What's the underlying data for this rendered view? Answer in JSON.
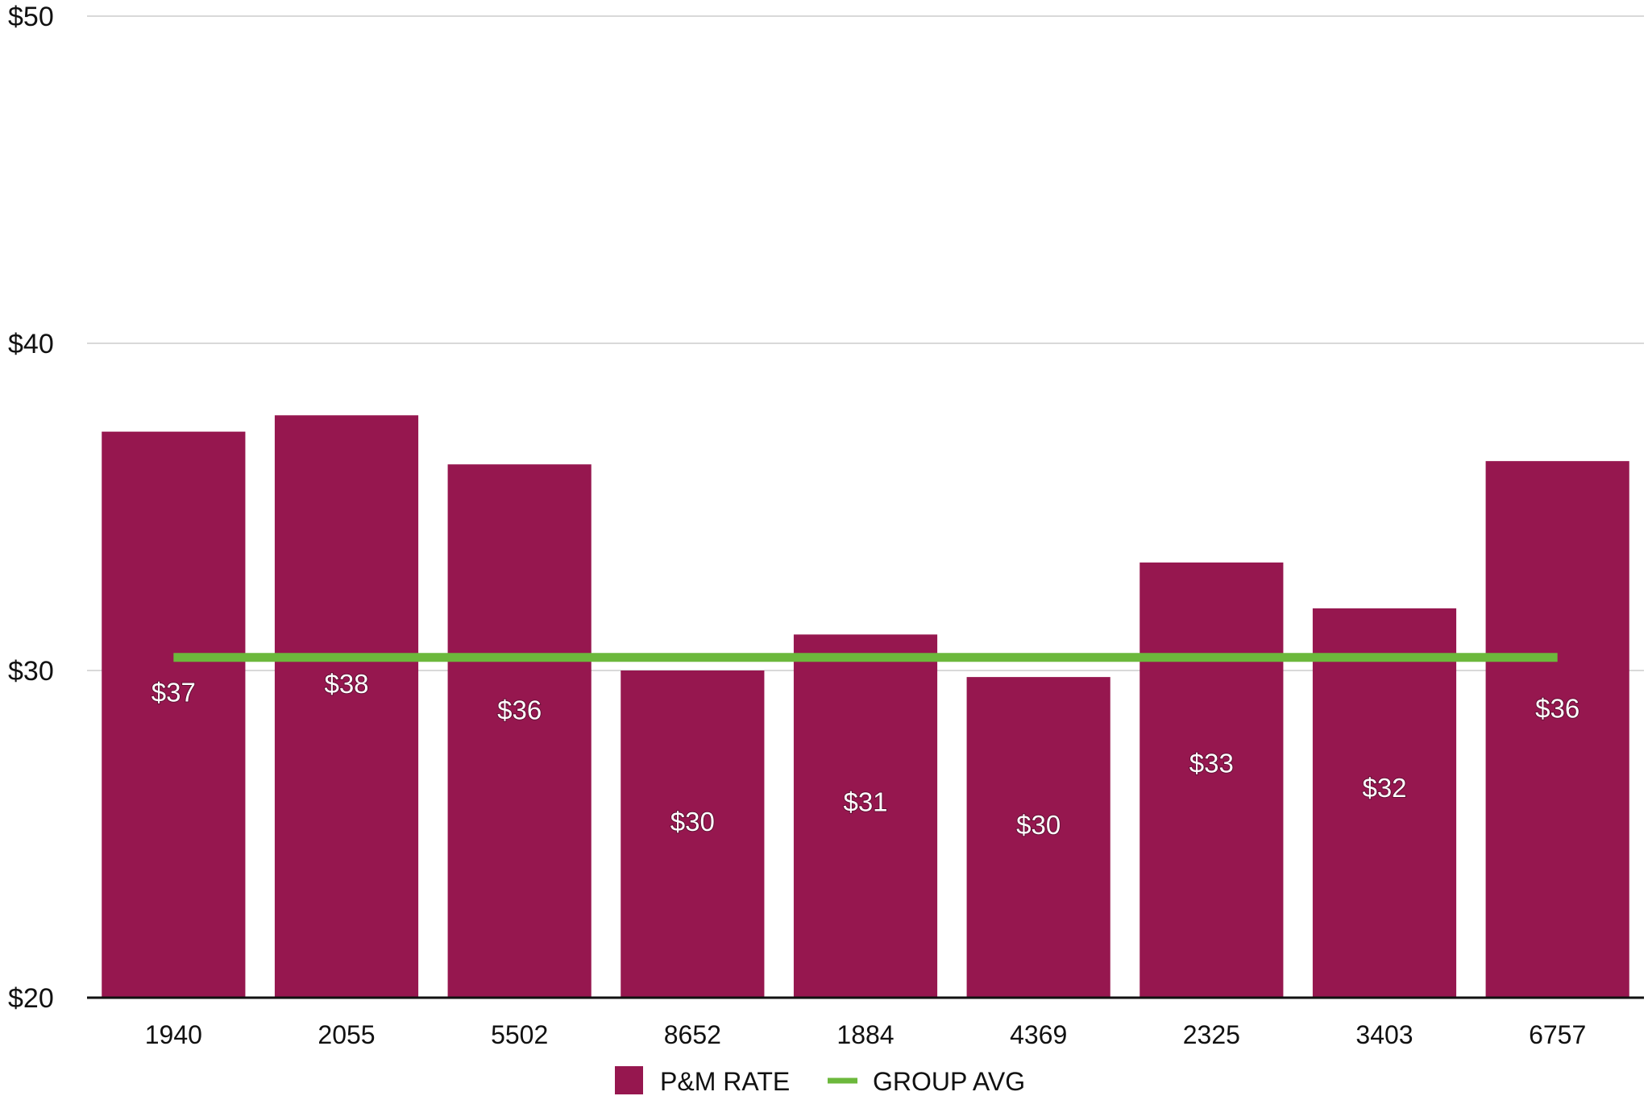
{
  "chart_data": {
    "type": "bar",
    "categories": [
      "1940",
      "2055",
      "5502",
      "8652",
      "1884",
      "4369",
      "2325",
      "3403",
      "6757"
    ],
    "series": [
      {
        "name": "P&M RATE",
        "values": [
          37.3,
          37.8,
          36.3,
          30.0,
          31.1,
          29.8,
          33.3,
          31.9,
          36.4
        ],
        "data_labels": [
          "$37",
          "$38",
          "$36",
          "$30",
          "$31",
          "$30",
          "$33",
          "$32",
          "$36"
        ],
        "color": "#96174f"
      }
    ],
    "reference_line": {
      "name": "GROUP AVG",
      "value": 30.4,
      "color": "#6cb83c"
    },
    "ylim": [
      20,
      50
    ],
    "yticks": [
      20,
      30,
      40,
      50
    ],
    "ytick_labels": [
      "$20",
      "$30",
      "$40",
      "$50"
    ],
    "grid": true,
    "legend_position": "bottom-center",
    "title": "",
    "xlabel": "",
    "ylabel": ""
  }
}
